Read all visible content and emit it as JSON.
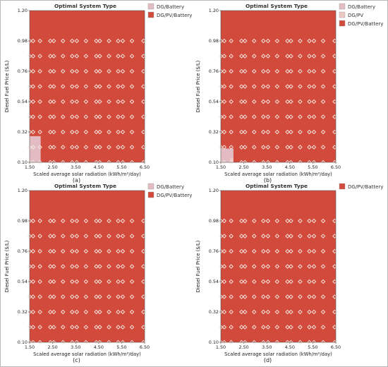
{
  "chart_data": [
    {
      "panel_label": "(a)",
      "type": "heatmap",
      "title": "Optimal System Type",
      "xlabel": "Scaled average solar radiation (kWh/m²/day)",
      "ylabel": "Diesel Fuel Price ($/L)",
      "xlim": [
        1.5,
        6.5
      ],
      "ylim": [
        0.1,
        1.2
      ],
      "x_ticks": [
        "1.50",
        "2.50",
        "3.50",
        "4.50",
        "5.50",
        "6.50"
      ],
      "y_ticks": [
        "0.10",
        "0.32",
        "0.54",
        "0.76",
        "0.98",
        "1.20"
      ],
      "legend": [
        {
          "name": "DG/Battery",
          "color": "#e2bcc2"
        },
        {
          "name": "DG/PV/Battery",
          "color": "#d24a3c"
        }
      ],
      "background_type": "DG/PV/Battery",
      "regions": [
        {
          "type": "DG/Battery",
          "x_max": 1.98,
          "y_max": 0.29
        }
      ],
      "sample_x": [
        1.5,
        1.65,
        1.95,
        2.4,
        2.55,
        2.95,
        3.35,
        3.55,
        3.95,
        4.4,
        4.55,
        4.95,
        5.35,
        5.55,
        5.95,
        6.45
      ],
      "sample_y": [
        0.1,
        0.21,
        0.32,
        0.43,
        0.54,
        0.65,
        0.76,
        0.87,
        0.98
      ],
      "legend_position": "top-right"
    },
    {
      "panel_label": "(b)",
      "type": "heatmap",
      "title": "Optimal System Type",
      "xlabel": "Scaled average solar radiation (kWh/m²/day)",
      "ylabel": "Diesel Fuel Price ($/L)",
      "xlim": [
        1.5,
        6.5
      ],
      "ylim": [
        0.1,
        1.2
      ],
      "x_ticks": [
        "1.50",
        "2.50",
        "3.50",
        "4.50",
        "5.50",
        "6.50"
      ],
      "y_ticks": [
        "0.10",
        "0.32",
        "0.54",
        "0.76",
        "0.98",
        "1.20"
      ],
      "legend": [
        {
          "name": "DG/Battery",
          "color": "#e2bcc2"
        },
        {
          "name": "DG/PV",
          "color": "#eec8c4"
        },
        {
          "name": "DG/PV/Battery",
          "color": "#d24a3c"
        }
      ],
      "background_type": "DG/PV/Battery",
      "regions": [
        {
          "type": "DG/Battery",
          "x_max": 2.05,
          "y_max": 0.2
        },
        {
          "type": "DG/PV",
          "x_min": 1.9,
          "x_max": 2.05,
          "y_max": 0.13
        }
      ],
      "sample_x": [
        1.5,
        1.65,
        1.95,
        2.4,
        2.55,
        2.95,
        3.35,
        3.55,
        3.95,
        4.4,
        4.55,
        4.95,
        5.35,
        5.55,
        5.95,
        6.45
      ],
      "sample_y": [
        0.1,
        0.21,
        0.32,
        0.43,
        0.54,
        0.65,
        0.76,
        0.87,
        0.98
      ],
      "legend_position": "top-right"
    },
    {
      "panel_label": "(c)",
      "type": "heatmap",
      "title": "Optimal System Type",
      "xlabel": "Scaled average solar radiation (kWh/m²/day)",
      "ylabel": "Diesel Fuel Price ($/L)",
      "xlim": [
        1.5,
        6.5
      ],
      "ylim": [
        0.1,
        1.2
      ],
      "x_ticks": [
        "1.50",
        "2.50",
        "3.50",
        "4.50",
        "5.50",
        "6.50"
      ],
      "y_ticks": [
        "0.10",
        "0.32",
        "0.54",
        "0.76",
        "0.98",
        "1.20"
      ],
      "legend": [
        {
          "name": "DG/Battery",
          "color": "#e2bcc2"
        },
        {
          "name": "DG/PV/Battery",
          "color": "#d24a3c"
        }
      ],
      "background_type": "DG/PV/Battery",
      "regions": [],
      "sample_x": [
        1.5,
        1.65,
        1.95,
        2.4,
        2.55,
        2.95,
        3.35,
        3.55,
        3.95,
        4.4,
        4.55,
        4.95,
        5.35,
        5.55,
        5.95,
        6.45
      ],
      "sample_y": [
        0.1,
        0.21,
        0.32,
        0.43,
        0.54,
        0.65,
        0.76,
        0.87,
        0.98
      ],
      "legend_position": "top-right"
    },
    {
      "panel_label": "(d)",
      "type": "heatmap",
      "title": "Optimal System Type",
      "xlabel": "Scaled average solar radiation (kWh/m²/day)",
      "ylabel": "Diesel Fuel Price ($/L)",
      "xlim": [
        1.5,
        6.5
      ],
      "ylim": [
        0.1,
        1.2
      ],
      "x_ticks": [
        "1.50",
        "2.50",
        "3.50",
        "4.50",
        "5.50",
        "6.50"
      ],
      "y_ticks": [
        "0.10",
        "0.32",
        "0.54",
        "0.76",
        "0.98",
        "1.20"
      ],
      "legend": [
        {
          "name": "DG/PV/Battery",
          "color": "#d24a3c"
        }
      ],
      "background_type": "DG/PV/Battery",
      "regions": [],
      "sample_x": [
        1.5,
        1.65,
        1.95,
        2.4,
        2.55,
        2.95,
        3.35,
        3.55,
        3.95,
        4.4,
        4.55,
        4.95,
        5.35,
        5.55,
        5.95,
        6.45
      ],
      "sample_y": [
        0.1,
        0.21,
        0.32,
        0.43,
        0.54,
        0.65,
        0.76,
        0.87,
        0.98
      ],
      "legend_position": "top-right"
    }
  ]
}
